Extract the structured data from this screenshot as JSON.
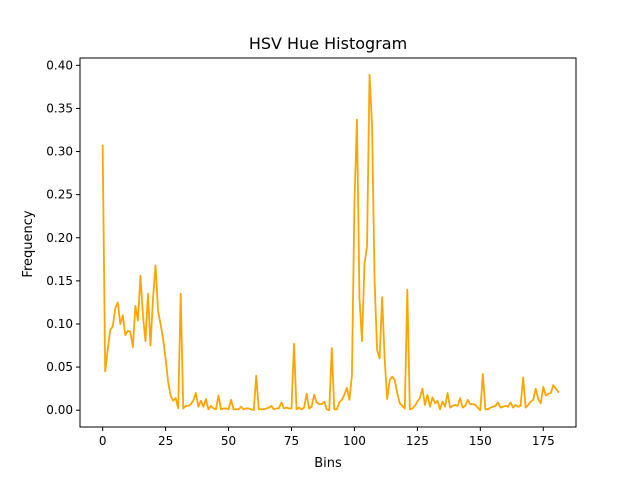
{
  "chart_data": {
    "type": "line",
    "title": "HSV Hue Histogram",
    "xlabel": "Bins",
    "ylabel": "Frequency",
    "xlim": [
      -9,
      188
    ],
    "ylim": [
      -0.0195,
      0.4085
    ],
    "grid": false,
    "line_color": "#ffa500",
    "x_ticks": [
      0,
      25,
      50,
      75,
      100,
      125,
      150,
      175
    ],
    "x_tick_labels": [
      "0",
      "25",
      "50",
      "75",
      "100",
      "125",
      "150",
      "175"
    ],
    "y_ticks": [
      0.0,
      0.05,
      0.1,
      0.15,
      0.2,
      0.25,
      0.3,
      0.35,
      0.4
    ],
    "y_tick_labels": [
      "0.00",
      "0.05",
      "0.10",
      "0.15",
      "0.20",
      "0.25",
      "0.30",
      "0.35",
      "0.40"
    ],
    "series": [
      {
        "values": [
          0.307,
          0.045,
          0.07,
          0.093,
          0.097,
          0.118,
          0.125,
          0.1,
          0.11,
          0.087,
          0.092,
          0.091,
          0.073,
          0.121,
          0.104,
          0.156,
          0.11,
          0.08,
          0.135,
          0.075,
          0.13,
          0.168,
          0.115,
          0.1,
          0.083,
          0.06,
          0.033,
          0.017,
          0.011,
          0.014,
          0.002,
          0.135,
          0.002,
          0.005,
          0.005,
          0.007,
          0.011,
          0.02,
          0.004,
          0.011,
          0.004,
          0.013,
          0.001,
          0.005,
          0.002,
          0.001,
          0.017,
          0.001,
          0.002,
          0.002,
          0.001,
          0.012,
          0.001,
          0.001,
          0.001,
          0.004,
          0.001,
          0.002,
          0.002,
          0.001,
          0.0,
          0.04,
          0.001,
          0.001,
          0.001,
          0.002,
          0.003,
          0.005,
          0.001,
          0.002,
          0.002,
          0.009,
          0.002,
          0.003,
          0.002,
          0.002,
          0.077,
          0.001,
          0.003,
          0.001,
          0.003,
          0.019,
          0.002,
          0.004,
          0.018,
          0.009,
          0.007,
          0.007,
          0.01,
          0.001,
          0.0,
          0.072,
          0.001,
          0.001,
          0.009,
          0.012,
          0.018,
          0.026,
          0.012,
          0.04,
          0.24,
          0.337,
          0.13,
          0.08,
          0.17,
          0.19,
          0.389,
          0.33,
          0.15,
          0.07,
          0.06,
          0.131,
          0.06,
          0.013,
          0.035,
          0.039,
          0.035,
          0.02,
          0.008,
          0.005,
          0.002,
          0.14,
          0.001,
          0.002,
          0.005,
          0.01,
          0.014,
          0.025,
          0.006,
          0.018,
          0.004,
          0.015,
          0.008,
          0.011,
          0.001,
          0.01,
          0.004,
          0.02,
          0.003,
          0.005,
          0.006,
          0.005,
          0.014,
          0.003,
          0.005,
          0.012,
          0.007,
          0.007,
          0.006,
          0.003,
          0.0,
          0.042,
          0.001,
          0.001,
          0.003,
          0.004,
          0.005,
          0.009,
          0.003,
          0.004,
          0.005,
          0.004,
          0.009,
          0.003,
          0.006,
          0.004,
          0.005,
          0.038,
          0.003,
          0.006,
          0.01,
          0.012,
          0.025,
          0.013,
          0.008,
          0.027,
          0.017,
          0.019,
          0.02,
          0.029,
          0.025,
          0.021
        ]
      }
    ]
  }
}
